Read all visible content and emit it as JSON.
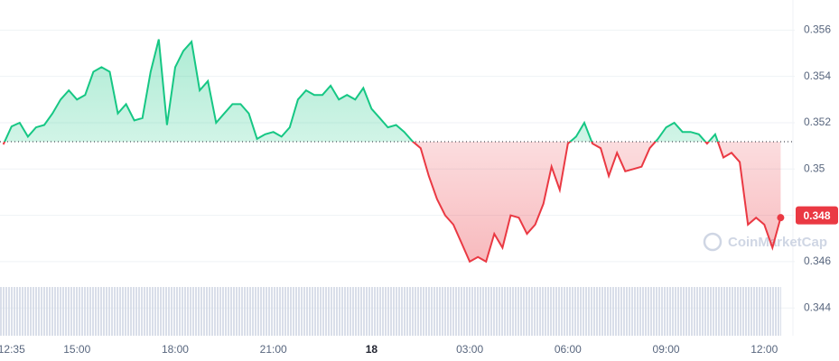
{
  "chart_data": {
    "type": "line",
    "watermark": "CoinMarketCap",
    "categories": [
      null,
      "12:35",
      null,
      null,
      null,
      null,
      null,
      null,
      null,
      "15:00",
      null,
      null,
      null,
      null,
      null,
      null,
      null,
      null,
      null,
      null,
      null,
      "18:00",
      null,
      null,
      null,
      null,
      null,
      null,
      null,
      null,
      null,
      null,
      null,
      "21:00",
      null,
      null,
      null,
      null,
      null,
      null,
      null,
      null,
      null,
      null,
      null,
      "18",
      null,
      null,
      null,
      null,
      null,
      null,
      null,
      null,
      null,
      null,
      null,
      "03:00",
      null,
      null,
      null,
      null,
      null,
      null,
      null,
      null,
      null,
      null,
      null,
      "06:00",
      null,
      null,
      null,
      null,
      null,
      null,
      null,
      null,
      null,
      null,
      null,
      "09:00",
      null,
      null,
      null,
      null,
      null,
      null,
      null,
      null,
      null,
      null,
      null,
      "12:00",
      null,
      null
    ],
    "values": [
      0.35106,
      0.35184,
      0.352,
      0.3514,
      0.3518,
      0.3519,
      0.3524,
      0.353,
      0.3534,
      0.353,
      0.3532,
      0.3542,
      0.3544,
      0.3542,
      0.3524,
      0.3528,
      0.3521,
      0.3522,
      0.3542,
      0.3556,
      0.3519,
      0.3544,
      0.3551,
      0.3555,
      0.3534,
      0.3538,
      0.352,
      0.3524,
      0.3528,
      0.3528,
      0.3524,
      0.3513,
      0.3515,
      0.3516,
      0.3514,
      0.3518,
      0.353,
      0.3534,
      0.3532,
      0.3532,
      0.3536,
      0.353,
      0.3532,
      0.353,
      0.3535,
      0.3526,
      0.3522,
      0.3518,
      0.3519,
      0.3516,
      0.3512,
      0.3509,
      0.3497,
      0.3487,
      0.348,
      0.3476,
      0.3468,
      0.346,
      0.3462,
      0.346,
      0.3472,
      0.3466,
      0.348,
      0.3479,
      0.3472,
      0.3476,
      0.3485,
      0.3501,
      0.3491,
      0.3511,
      0.3514,
      0.352,
      0.3511,
      0.3509,
      0.3497,
      0.3507,
      0.3499,
      0.35,
      0.3501,
      0.3509,
      0.3513,
      0.3518,
      0.352,
      0.3516,
      0.3516,
      0.3515,
      0.3511,
      0.3515,
      0.3505,
      0.3507,
      0.3503,
      0.3476,
      0.3479,
      0.3476,
      0.3466,
      0.3479
    ],
    "reference_line": 0.35118,
    "up_color": "#16c784",
    "down_color": "#ea3943",
    "current_price": 0.348,
    "ylim": [
      0.3428,
      0.3573
    ],
    "yticks": [
      0.344,
      0.346,
      0.348,
      0.35,
      0.352,
      0.354,
      0.356
    ],
    "grid": true
  }
}
